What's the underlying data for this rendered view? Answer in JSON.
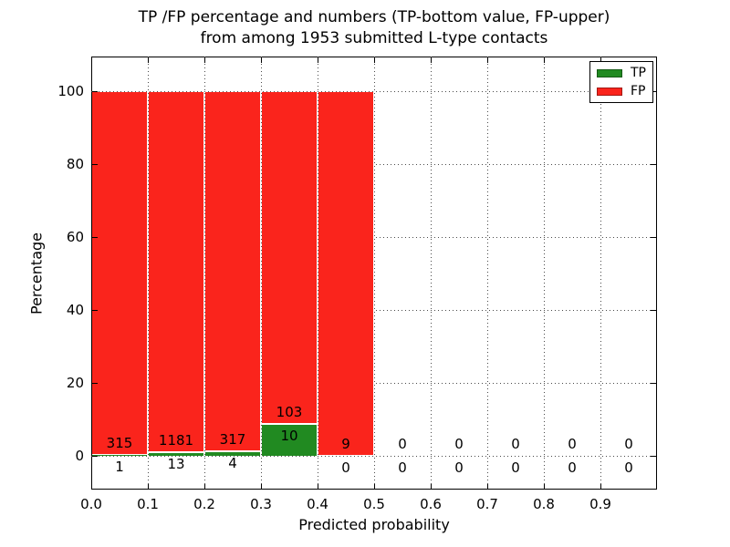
{
  "chart_data": {
    "type": "bar",
    "subtype": "stacked-percentage",
    "title_line1": "TP /FP percentage and numbers (TP-bottom value, FP-upper)",
    "title_line2": "from among 1953 submitted L-type contacts",
    "xlabel": "Predicted probability",
    "ylabel": "Percentage",
    "xlim": [
      0.0,
      1.0
    ],
    "ylim": [
      -10,
      110
    ],
    "x_tick_labels": [
      "0.0",
      "0.1",
      "0.2",
      "0.3",
      "0.4",
      "0.5",
      "0.6",
      "0.7",
      "0.8",
      "0.9"
    ],
    "y_tick_labels": [
      "0",
      "20",
      "40",
      "60",
      "80",
      "100"
    ],
    "y_tick_values": [
      0,
      20,
      40,
      60,
      80,
      100
    ],
    "grid": "dotted, both axes",
    "legend_position": "upper right",
    "bin_width": 0.1,
    "categories": [
      "0.0-0.1",
      "0.1-0.2",
      "0.2-0.3",
      "0.3-0.4",
      "0.4-0.5",
      "0.5-0.6",
      "0.6-0.7",
      "0.7-0.8",
      "0.8-0.9",
      "0.9-1.0"
    ],
    "series": [
      {
        "name": "TP",
        "color": "#218a21",
        "counts": [
          1,
          13,
          4,
          10,
          0,
          0,
          0,
          0,
          0,
          0
        ]
      },
      {
        "name": "FP",
        "color": "#fa241c",
        "counts": [
          315,
          1181,
          317,
          103,
          9,
          0,
          0,
          0,
          0,
          0
        ]
      }
    ],
    "tp_percent_of_bin": [
      0.32,
      1.09,
      1.25,
      8.85,
      0.0,
      null,
      null,
      null,
      null,
      null
    ],
    "total_submitted": 1953,
    "colors": {
      "tp": "#218a21",
      "fp": "#fa241c",
      "grid": "#4a4a4a",
      "text": "#000000",
      "background": "#ffffff"
    }
  }
}
